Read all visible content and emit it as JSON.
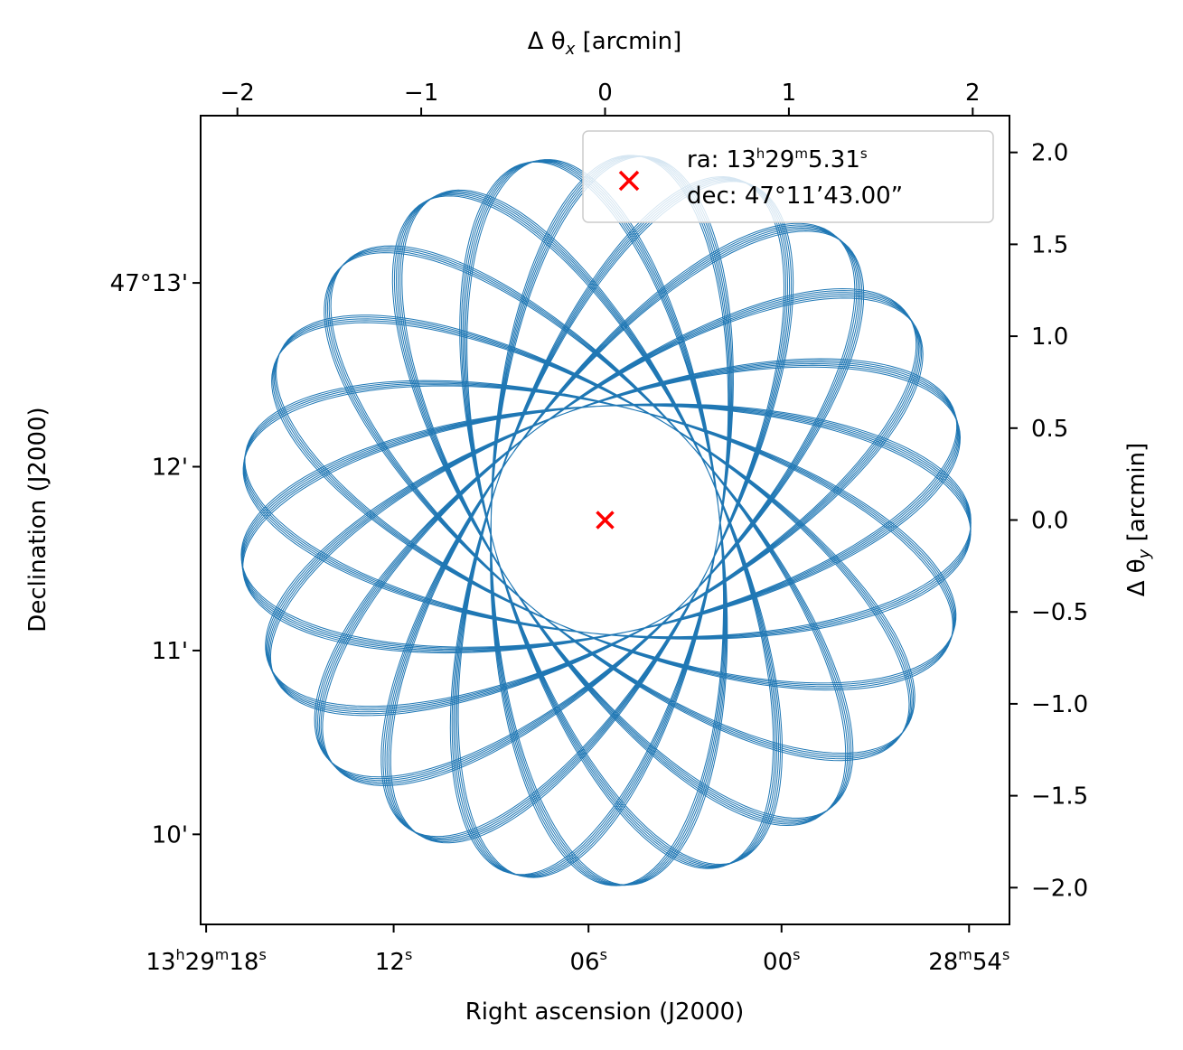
{
  "chart_data": {
    "type": "scatter",
    "title": "",
    "xlabel": "Right ascension (J2000)",
    "ylabel": "Declination (J2000)",
    "x2label": "Δ θ",
    "x2label_sub": "x",
    "x2label_unit": " [arcmin]",
    "y2label": "Δ θ",
    "y2label_sub": "y",
    "y2label_unit": " [arcmin]",
    "xlim_arcmin": [
      -2.2,
      2.2
    ],
    "ylim_arcmin": [
      -2.2,
      2.2
    ],
    "offset_x_ticks": [
      {
        "value": -2,
        "label": "−2"
      },
      {
        "value": -1,
        "label": "−1"
      },
      {
        "value": 0,
        "label": "0"
      },
      {
        "value": 1,
        "label": "1"
      },
      {
        "value": 2,
        "label": "2"
      }
    ],
    "offset_y_ticks": [
      {
        "value": 2.0,
        "label": "2.0"
      },
      {
        "value": 1.5,
        "label": "1.5"
      },
      {
        "value": 1.0,
        "label": "1.0"
      },
      {
        "value": 0.5,
        "label": "0.5"
      },
      {
        "value": 0.0,
        "label": "0.0"
      },
      {
        "value": -0.5,
        "label": "−0.5"
      },
      {
        "value": -1.0,
        "label": "−1.0"
      },
      {
        "value": -1.5,
        "label": "−1.5"
      },
      {
        "value": -2.0,
        "label": "−2.0"
      }
    ],
    "ra_ticks": [
      {
        "arcmin": -2.17,
        "main": "13",
        "sup1": "h",
        "mid": "29",
        "sup2": "m",
        "end": "18",
        "sup3": "s"
      },
      {
        "arcmin": -1.15,
        "main": "",
        "sup1": "",
        "mid": "",
        "sup2": "",
        "end": "12",
        "sup3": "s"
      },
      {
        "arcmin": -0.09,
        "main": "",
        "sup1": "",
        "mid": "",
        "sup2": "",
        "end": "06",
        "sup3": "s"
      },
      {
        "arcmin": 0.96,
        "main": "",
        "sup1": "",
        "mid": "",
        "sup2": "",
        "end": "00",
        "sup3": "s"
      },
      {
        "arcmin": 1.98,
        "main": "",
        "sup1": "",
        "mid": "28",
        "sup2": "m",
        "end": "54",
        "sup3": "s"
      }
    ],
    "dec_ticks": [
      {
        "arcmin": 1.29,
        "label": "47°13'"
      },
      {
        "arcmin": 0.29,
        "label": "12'"
      },
      {
        "arcmin": -0.71,
        "label": "11'"
      },
      {
        "arcmin": -1.71,
        "label": "10'"
      }
    ],
    "target": {
      "x": 0.0,
      "y": 0.0,
      "color": "#ff0000"
    },
    "series": [
      {
        "scan": "lissajous-rotating",
        "color": "#1f77b4",
        "start": [
          -0.86,
          1.24
        ],
        "radius": 1.99
      }
    ],
    "legend": {
      "placement": "top-right",
      "marker_color": "#ff0000",
      "line1_prefix": "ra: 13",
      "line1_h": "h",
      "line1_mid": "29",
      "line1_m": "m",
      "line1_end": "5.31",
      "line1_s": "s",
      "line2": "dec: 47°11’43.00”"
    }
  }
}
